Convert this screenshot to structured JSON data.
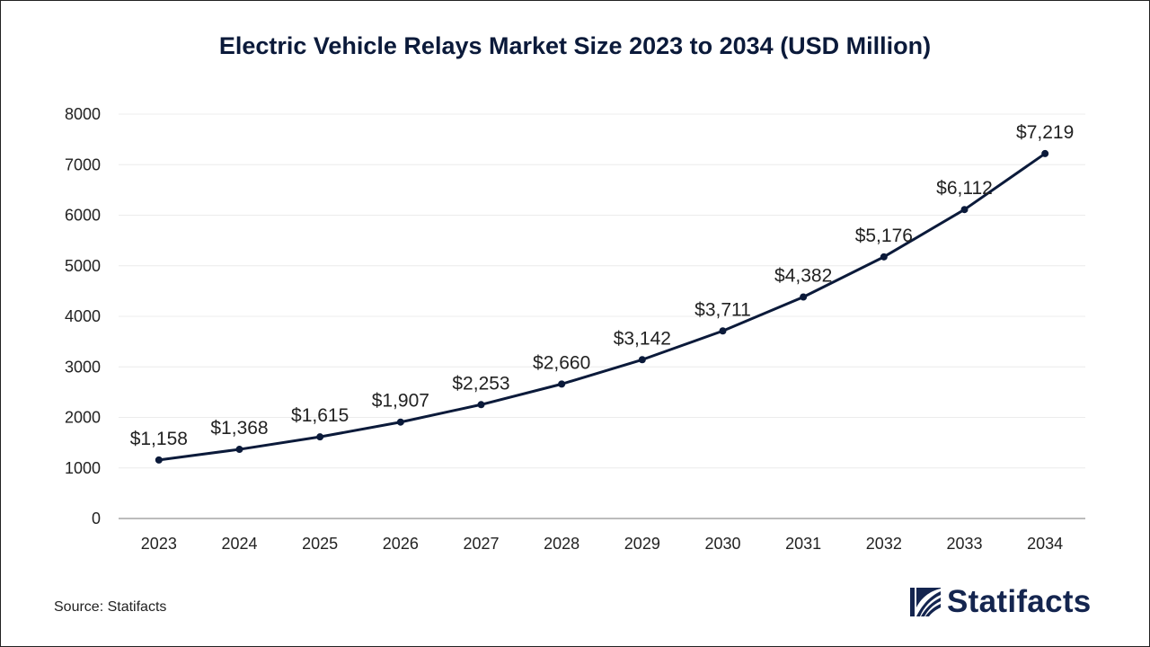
{
  "chart_data": {
    "type": "line",
    "title": "Electric Vehicle Relays Market Size 2023 to 2034 (USD Million)",
    "xlabel": "",
    "ylabel": "",
    "ylim": [
      0,
      8000
    ],
    "yticks": [
      "0",
      "1000",
      "2000",
      "3000",
      "4000",
      "5000",
      "6000",
      "7000",
      "8000"
    ],
    "grid": true,
    "legend": "none",
    "categories": [
      "2023",
      "2024",
      "2025",
      "2026",
      "2027",
      "2028",
      "2029",
      "2030",
      "2031",
      "2032",
      "2033",
      "2034"
    ],
    "series": [
      {
        "name": "Market Size (USD Million)",
        "values": [
          1158,
          1368,
          1615,
          1907,
          2253,
          2660,
          3142,
          3711,
          4382,
          5176,
          6112,
          7219
        ],
        "labels": [
          "$1,158",
          "$1,368",
          "$1,615",
          "$1,907",
          "$2,253",
          "$2,660",
          "$3,142",
          "$3,711",
          "$4,382",
          "$5,176",
          "$6,112",
          "$7,219"
        ]
      }
    ],
    "colors": {
      "line": "#0b1a3a",
      "grid": "#ececec",
      "axis": "#a6a6a6",
      "text": "#222222"
    }
  },
  "source": "Source: Statifacts",
  "brand": {
    "name": "Statifacts",
    "icon": "statifacts-logo-icon",
    "color": "#14254f"
  }
}
